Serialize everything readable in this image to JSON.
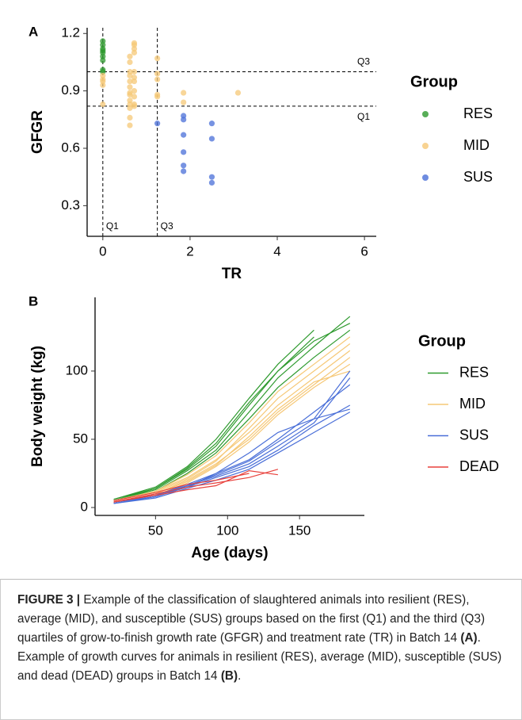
{
  "chart_data": [
    {
      "type": "scatter",
      "panel": "A",
      "x_label": "TR",
      "y_label": "GFGR",
      "legend_title": "Group",
      "xlim": [
        -0.36,
        6.27
      ],
      "ylim": [
        0.14,
        1.23
      ],
      "xticks": [
        0,
        2,
        4,
        6
      ],
      "yticks": [
        0.3,
        0.6,
        0.9,
        1.2
      ],
      "hlines": [
        {
          "value": 0.82,
          "label": "Q1"
        },
        {
          "value": 1.0,
          "label": "Q3"
        }
      ],
      "vlines": [
        {
          "value": 0,
          "label": "Q1"
        },
        {
          "value": 1.25,
          "label": "Q3"
        }
      ],
      "series": [
        {
          "name": "RES",
          "color": "#2e9a2e",
          "x": [
            0,
            0,
            0,
            0,
            0,
            0,
            0,
            0,
            0
          ],
          "values": [
            1.16,
            1.14,
            1.12,
            1.11,
            1.1,
            1.08,
            1.06,
            1.01,
            1.0
          ]
        },
        {
          "name": "MID",
          "color": "#f6c877",
          "x": [
            0,
            0,
            0,
            0,
            0,
            0.62,
            0.62,
            0.62,
            0.62,
            0.62,
            0.62,
            0.62,
            0.62,
            0.62,
            0.62,
            0.62,
            0.62,
            0.62,
            0.72,
            0.72,
            0.72,
            0.72,
            0.72,
            0.72,
            0.72,
            0.72,
            0.72,
            0.72,
            0.72,
            1.25,
            1.25,
            1.25,
            1.25,
            1.25,
            1.85,
            1.85,
            3.1
          ],
          "values": [
            0.98,
            0.96,
            0.95,
            0.93,
            0.83,
            1.08,
            1.05,
            1.0,
            0.98,
            0.95,
            0.92,
            0.89,
            0.88,
            0.85,
            0.83,
            0.81,
            0.76,
            0.72,
            1.15,
            1.14,
            1.12,
            1.1,
            1.0,
            0.97,
            0.95,
            0.9,
            0.87,
            0.83,
            0.82,
            1.07,
            0.99,
            0.96,
            0.88,
            0.87,
            0.89,
            0.84,
            0.89
          ]
        },
        {
          "name": "SUS",
          "color": "#4a6fd8",
          "x": [
            1.25,
            1.85,
            1.85,
            1.85,
            1.85,
            1.85,
            1.85,
            2.5,
            2.5,
            2.5,
            2.5
          ],
          "values": [
            0.73,
            0.77,
            0.75,
            0.67,
            0.58,
            0.51,
            0.48,
            0.73,
            0.65,
            0.45,
            0.42
          ]
        }
      ]
    },
    {
      "type": "line",
      "panel": "B",
      "x_label": "Age (days)",
      "y_label": "Body weight (kg)",
      "legend_title": "Group",
      "xlim": [
        8,
        195
      ],
      "ylim": [
        -5.8,
        154
      ],
      "xticks": [
        50,
        100,
        150
      ],
      "yticks": [
        0,
        50,
        100
      ],
      "x": [
        21,
        50,
        72,
        92,
        115,
        135,
        160,
        185
      ],
      "series": [
        {
          "name": "RES",
          "color": "#2e9a2e",
          "lines": [
            [
              5,
              14,
              28,
              45,
              75,
              100,
              125,
              null
            ],
            [
              6,
              15,
              30,
              50,
              80,
              105,
              130,
              null
            ],
            [
              5,
              13,
              27,
              42,
              70,
              95,
              118,
              140
            ],
            [
              6,
              14,
              29,
              47,
              77,
              100,
              122,
              135
            ],
            [
              5,
              12,
              25,
              40,
              65,
              88,
              110,
              130
            ]
          ]
        },
        {
          "name": "MID",
          "color": "#f6c877",
          "lines": [
            [
              5,
              12,
              22,
              35,
              55,
              75,
              95,
              115
            ],
            [
              4,
              10,
              20,
              32,
              50,
              70,
              90,
              110
            ],
            [
              5,
              11,
              21,
              34,
              58,
              80,
              100,
              120
            ],
            [
              4,
              9,
              18,
              30,
              48,
              68,
              88,
              105
            ],
            [
              5,
              12,
              24,
              38,
              62,
              85,
              105,
              125
            ],
            [
              4,
              10,
              19,
              31,
              52,
              72,
              92,
              100
            ]
          ]
        },
        {
          "name": "SUS",
          "color": "#4a6fd8",
          "lines": [
            [
              4,
              9,
              17,
              25,
              35,
              50,
              70,
              90
            ],
            [
              3,
              8,
              15,
              22,
              30,
              42,
              60,
              75
            ],
            [
              4,
              9,
              16,
              24,
              34,
              48,
              65,
              100
            ],
            [
              3,
              7,
              14,
              20,
              28,
              40,
              55,
              70
            ],
            [
              4,
              8,
              16,
              23,
              32,
              45,
              62,
              95
            ],
            [
              3,
              8,
              15,
              25,
              40,
              55,
              65,
              72
            ]
          ]
        },
        {
          "name": "DEAD",
          "color": "#e8413c",
          "lines": [
            [
              4,
              10,
              15,
              18,
              22,
              28,
              null,
              null
            ],
            [
              5,
              11,
              17,
              20,
              25,
              null,
              null,
              null
            ],
            [
              4,
              9,
              13,
              16,
              27,
              24,
              null,
              null
            ]
          ]
        }
      ]
    }
  ],
  "caption": {
    "label": "FIGURE 3 |",
    "text1": "Example of the classification of slaughtered animals into resilient (RES), average (MID), and susceptible (SUS) groups based on the first (Q1) and the third (Q3) quartiles of grow-to-finish growth rate (GFGR) and treatment rate (TR) in Batch 14",
    "bold_a": "(A)",
    "text2": ". Example of growth curves for animals in resilient (RES), average (MID), susceptible (SUS) and dead (DEAD) groups in Batch 14",
    "bold_b": "(B)",
    "end": "."
  }
}
